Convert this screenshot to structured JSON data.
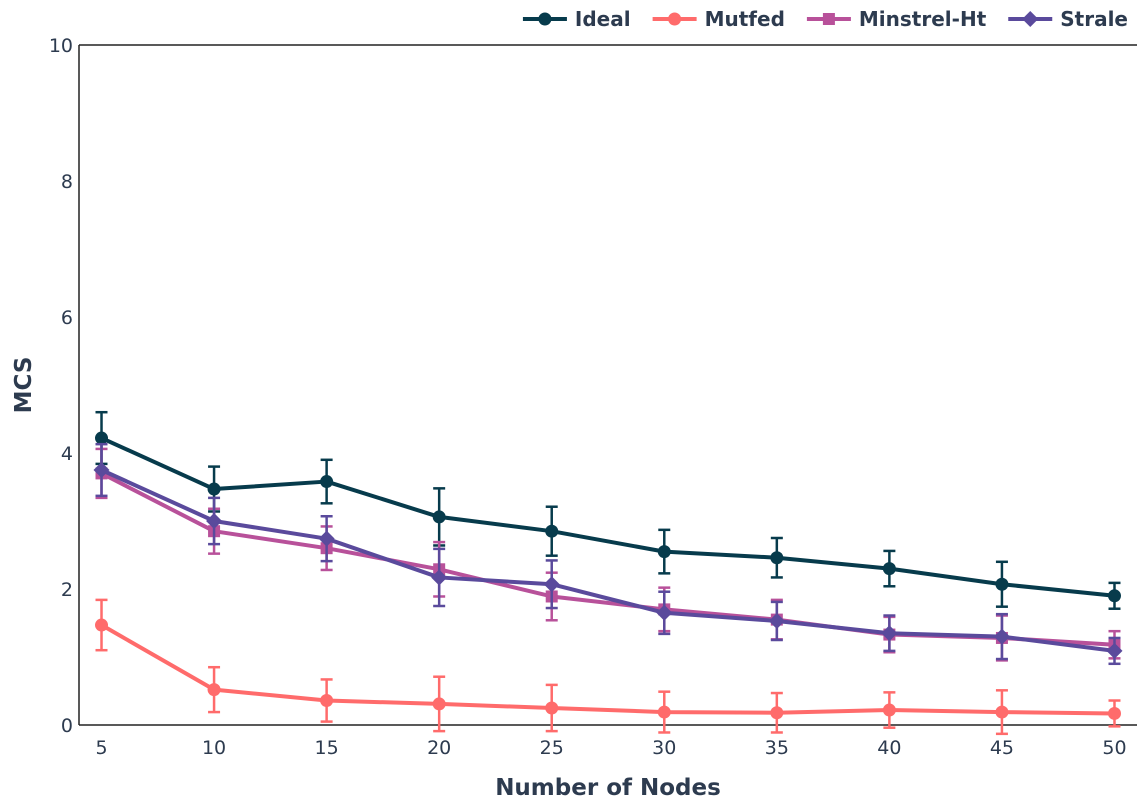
{
  "chart_data": {
    "type": "line",
    "title": "",
    "xlabel": "Number of Nodes",
    "ylabel": "MCS",
    "x": [
      5,
      10,
      15,
      20,
      25,
      30,
      35,
      40,
      45,
      50
    ],
    "xlim": [
      4,
      51
    ],
    "ylim": [
      0,
      10
    ],
    "y_ticks": [
      0,
      2,
      4,
      6,
      8,
      10
    ],
    "grid": false,
    "legend_position": "top-right",
    "series": [
      {
        "name": "Ideal",
        "color": "#073b4c",
        "marker": "circle",
        "values": [
          4.22,
          3.47,
          3.58,
          3.06,
          2.85,
          2.55,
          2.46,
          2.3,
          2.07,
          1.9
        ],
        "error": [
          0.38,
          0.33,
          0.32,
          0.42,
          0.36,
          0.32,
          0.29,
          0.26,
          0.33,
          0.19
        ]
      },
      {
        "name": "Mutfed",
        "color": "#ff6b6b",
        "marker": "circle",
        "values": [
          1.47,
          0.52,
          0.36,
          0.31,
          0.25,
          0.19,
          0.18,
          0.22,
          0.19,
          0.17
        ],
        "error": [
          0.37,
          0.33,
          0.31,
          0.4,
          0.34,
          0.3,
          0.29,
          0.26,
          0.32,
          0.19
        ]
      },
      {
        "name": "Minstrel-Ht",
        "color": "#b8519a",
        "marker": "square",
        "values": [
          3.7,
          2.85,
          2.6,
          2.29,
          1.89,
          1.7,
          1.55,
          1.33,
          1.28,
          1.18
        ],
        "error": [
          0.36,
          0.33,
          0.32,
          0.4,
          0.35,
          0.32,
          0.29,
          0.26,
          0.33,
          0.2
        ]
      },
      {
        "name": "Strale",
        "color": "#5a4a9c",
        "marker": "diamond",
        "values": [
          3.75,
          3.0,
          2.74,
          2.17,
          2.07,
          1.65,
          1.53,
          1.35,
          1.3,
          1.09
        ],
        "error": [
          0.38,
          0.34,
          0.33,
          0.42,
          0.35,
          0.31,
          0.28,
          0.26,
          0.33,
          0.19
        ]
      }
    ]
  }
}
